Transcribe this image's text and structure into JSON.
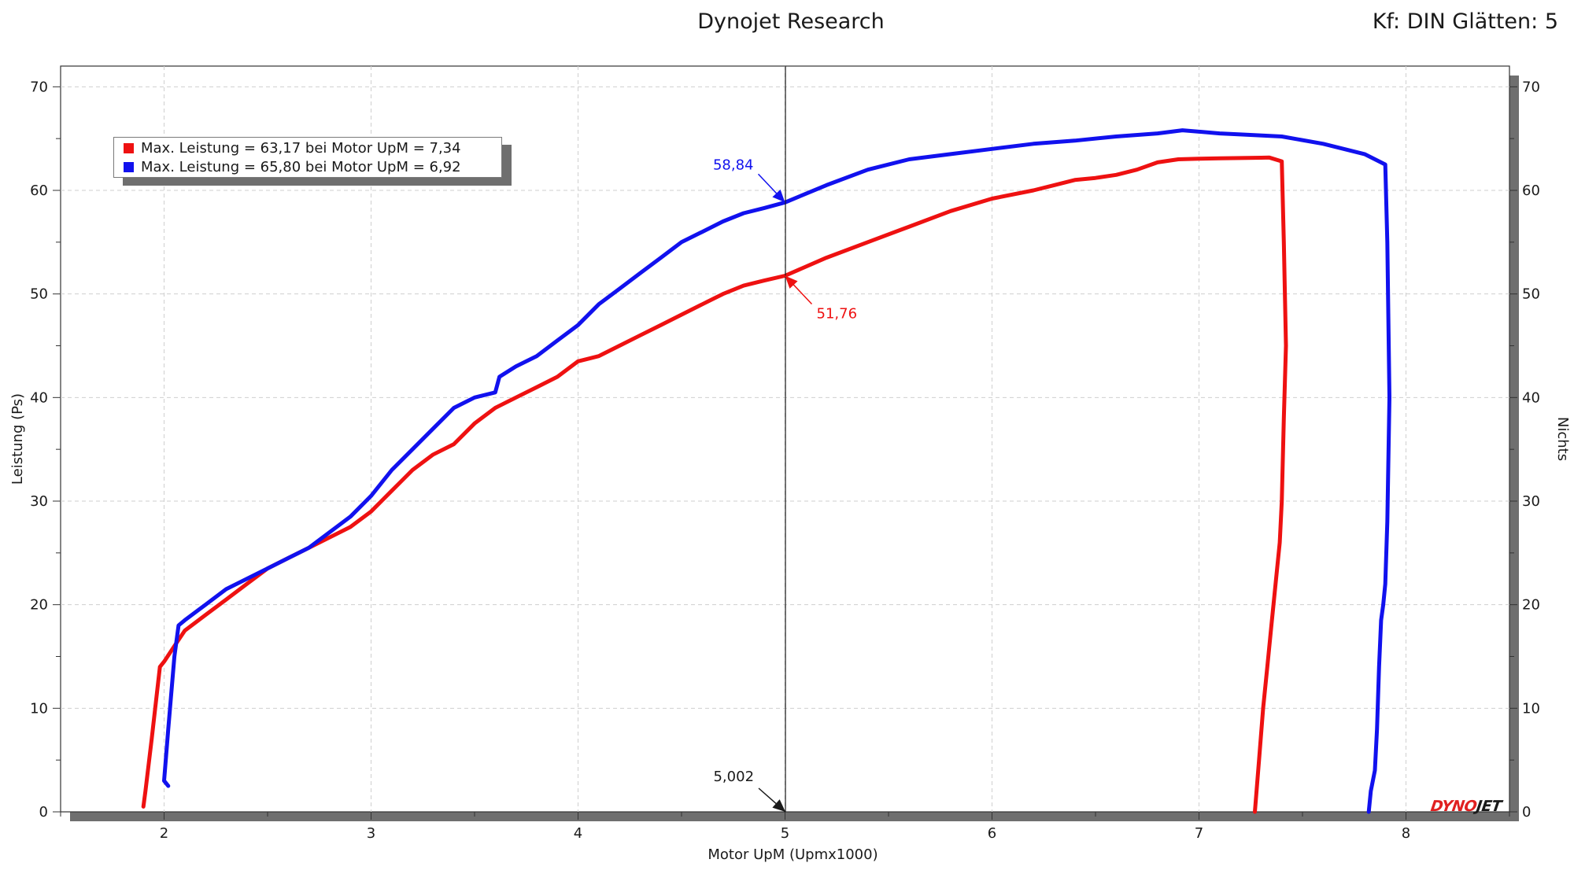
{
  "header": {
    "title": "Dynojet Research",
    "corner": "Kf: DIN Glätten: 5"
  },
  "logo": {
    "part1": "DYNO",
    "part2": "JET"
  },
  "colors": {
    "series_red": "#ee1111",
    "series_blue": "#1111ee",
    "grid": "#cfcfcf"
  },
  "legend": {
    "entries": [
      {
        "text": "Max. Leistung = 63,17 bei Motor UpM = 7,34",
        "color": "#ee1111"
      },
      {
        "text": "Max. Leistung = 65,80 bei Motor UpM = 6,92",
        "color": "#1111ee"
      }
    ]
  },
  "chart_data": {
    "type": "line",
    "title": "Dynojet Research",
    "xlabel": "Motor UpM (Upmx1000)",
    "ylabel": "Leistung (Ps)",
    "y2label": "Nichts",
    "xlim": [
      1.5,
      8.5
    ],
    "ylim": [
      0,
      72
    ],
    "xticks": [
      2,
      3,
      4,
      5,
      6,
      7,
      8
    ],
    "yticks": [
      0,
      10,
      20,
      30,
      40,
      50,
      60,
      70
    ],
    "grid": true,
    "legend_position": "top-left",
    "cursor": {
      "x": 5.002,
      "x_label": "5,002"
    },
    "annotations": [
      {
        "text": "58,84",
        "series": "blue",
        "x": 5.0,
        "y": 58.84
      },
      {
        "text": "51,76",
        "series": "red",
        "x": 5.0,
        "y": 51.76
      }
    ],
    "series": [
      {
        "color": "#ee1111",
        "x": [
          1.9,
          1.91,
          1.94,
          1.98,
          2.0,
          2.05,
          2.1,
          2.2,
          2.3,
          2.4,
          2.5,
          2.6,
          2.75,
          2.9,
          3.0,
          3.1,
          3.2,
          3.3,
          3.4,
          3.5,
          3.6,
          3.7,
          3.8,
          3.9,
          4.0,
          4.1,
          4.2,
          4.3,
          4.4,
          4.5,
          4.6,
          4.7,
          4.8,
          4.9,
          5.0,
          5.2,
          5.4,
          5.6,
          5.8,
          6.0,
          6.2,
          6.3,
          6.4,
          6.5,
          6.6,
          6.7,
          6.8,
          6.9,
          7.0,
          7.1,
          7.2,
          7.3,
          7.34,
          7.4,
          7.41,
          7.42,
          7.41,
          7.4,
          7.39,
          7.37,
          7.35,
          7.33,
          7.31,
          7.29,
          7.27
        ],
        "y": [
          0.5,
          2,
          7,
          14,
          14.5,
          16,
          17.5,
          19,
          20.5,
          22,
          23.5,
          24.5,
          26,
          27.5,
          29,
          31,
          33,
          34.5,
          35.5,
          37.5,
          39,
          40,
          41,
          42,
          43.5,
          44,
          45,
          46,
          47,
          48,
          49,
          50,
          50.8,
          51.3,
          51.76,
          53.5,
          55,
          56.5,
          58,
          59.2,
          60,
          60.5,
          61,
          61.2,
          61.5,
          62,
          62.7,
          63,
          63.05,
          63.1,
          63.12,
          63.15,
          63.17,
          62.8,
          55,
          45,
          38,
          30,
          26,
          22,
          18,
          14,
          10,
          5,
          0
        ]
      },
      {
        "color": "#1111ee",
        "x": [
          2.02,
          2.0,
          2.02,
          2.05,
          2.07,
          2.1,
          2.2,
          2.3,
          2.4,
          2.5,
          2.6,
          2.7,
          2.8,
          2.9,
          3.0,
          3.1,
          3.2,
          3.3,
          3.4,
          3.5,
          3.6,
          3.62,
          3.7,
          3.8,
          3.9,
          4.0,
          4.1,
          4.2,
          4.3,
          4.4,
          4.5,
          4.6,
          4.7,
          4.8,
          4.9,
          5.0,
          5.2,
          5.4,
          5.6,
          5.8,
          6.0,
          6.2,
          6.4,
          6.6,
          6.8,
          6.92,
          7.1,
          7.2,
          7.4,
          7.6,
          7.8,
          7.9,
          7.91,
          7.92,
          7.91,
          7.9,
          7.89,
          7.88,
          7.87,
          7.86,
          7.85,
          7.83,
          7.82
        ],
        "y": [
          2.5,
          3,
          8,
          15,
          18,
          18.5,
          20,
          21.5,
          22.5,
          23.5,
          24.5,
          25.5,
          27,
          28.5,
          30.5,
          33,
          35,
          37,
          39,
          40,
          40.5,
          42,
          43,
          44,
          45.5,
          47,
          49,
          50.5,
          52,
          53.5,
          55,
          56,
          57,
          57.8,
          58.3,
          58.84,
          60.5,
          62,
          63,
          63.5,
          64,
          64.5,
          64.8,
          65.2,
          65.5,
          65.8,
          65.5,
          65.4,
          65.2,
          64.5,
          63.5,
          62.5,
          55,
          40,
          28,
          22,
          20,
          18.5,
          14,
          8,
          4,
          2,
          0
        ]
      }
    ]
  }
}
